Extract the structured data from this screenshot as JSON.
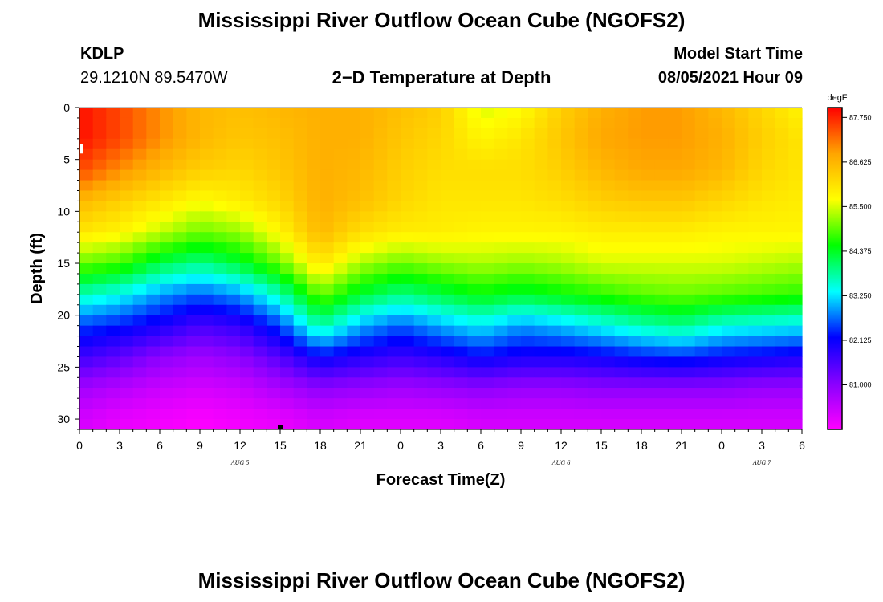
{
  "header": {
    "title": "Mississippi River Outflow Ocean Cube (NGOFS2)",
    "station_id": "KDLP",
    "station_coords": "29.1210N  89.5470W",
    "plot_title": "2−D Temperature at Depth",
    "model_start_label": "Model Start Time",
    "model_start_value": "08/05/2021 Hour 09"
  },
  "footer": {
    "title": "Mississippi River Outflow Ocean Cube (NGOFS2)"
  },
  "chart_data": {
    "type": "heatmap",
    "title": "2−D Temperature at Depth",
    "xlabel": "Forecast Time(Z)",
    "ylabel": "Depth (ft)",
    "x_hours_from_aug5_00z": [
      0,
      54
    ],
    "x_tick_labels": [
      "0",
      "3",
      "6",
      "9",
      "12",
      "15",
      "18",
      "21",
      "0",
      "3",
      "6",
      "9",
      "12",
      "15",
      "18",
      "21",
      "0",
      "3",
      "6"
    ],
    "date_labels": [
      {
        "label": "AUG 5",
        "hour": 12
      },
      {
        "label": "AUG 6",
        "hour": 36
      },
      {
        "label": "AUG 7",
        "hour": 51
      }
    ],
    "y_ticks": [
      0,
      5,
      10,
      15,
      20,
      25,
      30
    ],
    "ylim": [
      0,
      31
    ],
    "y_inverted": true,
    "colorbar": {
      "units": "degF",
      "tick_labels": [
        "87.750",
        "86.625",
        "85.500",
        "84.375",
        "83.250",
        "82.125",
        "81.000"
      ],
      "tick_values": [
        87.75,
        86.625,
        85.5,
        84.375,
        83.25,
        82.125,
        81.0
      ],
      "range": [
        79.875,
        88.0
      ],
      "colors": [
        "#ff00ff",
        "#8800ff",
        "#0000ff",
        "#00ffff",
        "#00ff00",
        "#ffff00",
        "#ffa500",
        "#ff0000"
      ]
    },
    "current_time_marker_hour": 15,
    "depths_ft": [
      0,
      3,
      6,
      9,
      12,
      15,
      18,
      21,
      24,
      27,
      30
    ],
    "times_hours": [
      0,
      3,
      6,
      9,
      12,
      15,
      18,
      21,
      24,
      27,
      30,
      33,
      36,
      39,
      42,
      45,
      48,
      51,
      54
    ],
    "temperature_grid": [
      [
        87.9,
        87.5,
        87.0,
        86.6,
        86.5,
        86.6,
        86.7,
        86.7,
        86.5,
        86.3,
        85.5,
        85.7,
        86.3,
        86.7,
        86.9,
        86.9,
        86.6,
        86.2,
        85.8
      ],
      [
        87.9,
        87.5,
        87.0,
        86.6,
        86.4,
        86.5,
        86.7,
        86.7,
        86.4,
        86.2,
        85.8,
        86.0,
        86.4,
        86.8,
        86.9,
        86.9,
        86.7,
        86.3,
        86.0
      ],
      [
        87.5,
        87.0,
        86.6,
        86.3,
        86.2,
        86.4,
        86.7,
        86.6,
        86.3,
        86.1,
        86.1,
        86.1,
        86.3,
        86.6,
        86.8,
        86.8,
        86.6,
        86.2,
        86.0
      ],
      [
        86.6,
        86.3,
        86.0,
        85.7,
        85.9,
        86.2,
        86.7,
        86.5,
        86.2,
        86.0,
        86.0,
        86.0,
        86.1,
        86.3,
        86.4,
        86.4,
        86.2,
        86.0,
        85.9
      ],
      [
        86.0,
        85.8,
        85.4,
        85.0,
        85.2,
        85.8,
        86.6,
        86.1,
        85.9,
        85.9,
        85.8,
        85.8,
        85.8,
        85.9,
        85.9,
        85.9,
        85.8,
        85.8,
        85.8
      ],
      [
        85.0,
        84.8,
        84.2,
        83.9,
        84.3,
        85.0,
        86.0,
        85.3,
        85.0,
        85.2,
        85.3,
        85.2,
        85.3,
        85.5,
        85.5,
        85.5,
        85.5,
        85.4,
        85.3
      ],
      [
        83.7,
        83.4,
        82.9,
        82.6,
        82.9,
        83.7,
        85.0,
        84.3,
        83.9,
        84.2,
        84.5,
        84.3,
        84.5,
        84.7,
        84.9,
        85.0,
        84.9,
        84.8,
        84.7
      ],
      [
        82.5,
        82.3,
        82.0,
        81.6,
        81.8,
        82.5,
        83.8,
        83.0,
        82.6,
        83.0,
        83.3,
        82.9,
        83.1,
        83.4,
        83.7,
        83.9,
        83.5,
        83.4,
        83.3
      ],
      [
        81.7,
        81.4,
        81.0,
        80.8,
        81.0,
        81.5,
        82.2,
        81.9,
        81.7,
        81.9,
        82.2,
        82.0,
        82.0,
        82.1,
        82.3,
        82.4,
        82.2,
        82.1,
        82.0
      ],
      [
        80.8,
        80.6,
        80.4,
        80.3,
        80.4,
        80.7,
        81.0,
        80.9,
        80.8,
        80.9,
        81.0,
        80.9,
        80.9,
        81.0,
        81.0,
        81.0,
        81.0,
        80.9,
        80.9
      ],
      [
        80.3,
        80.1,
        80.0,
        79.9,
        80.0,
        80.1,
        80.3,
        80.2,
        80.2,
        80.2,
        80.3,
        80.3,
        80.3,
        80.3,
        80.3,
        80.3,
        80.3,
        80.3,
        80.3
      ]
    ]
  }
}
